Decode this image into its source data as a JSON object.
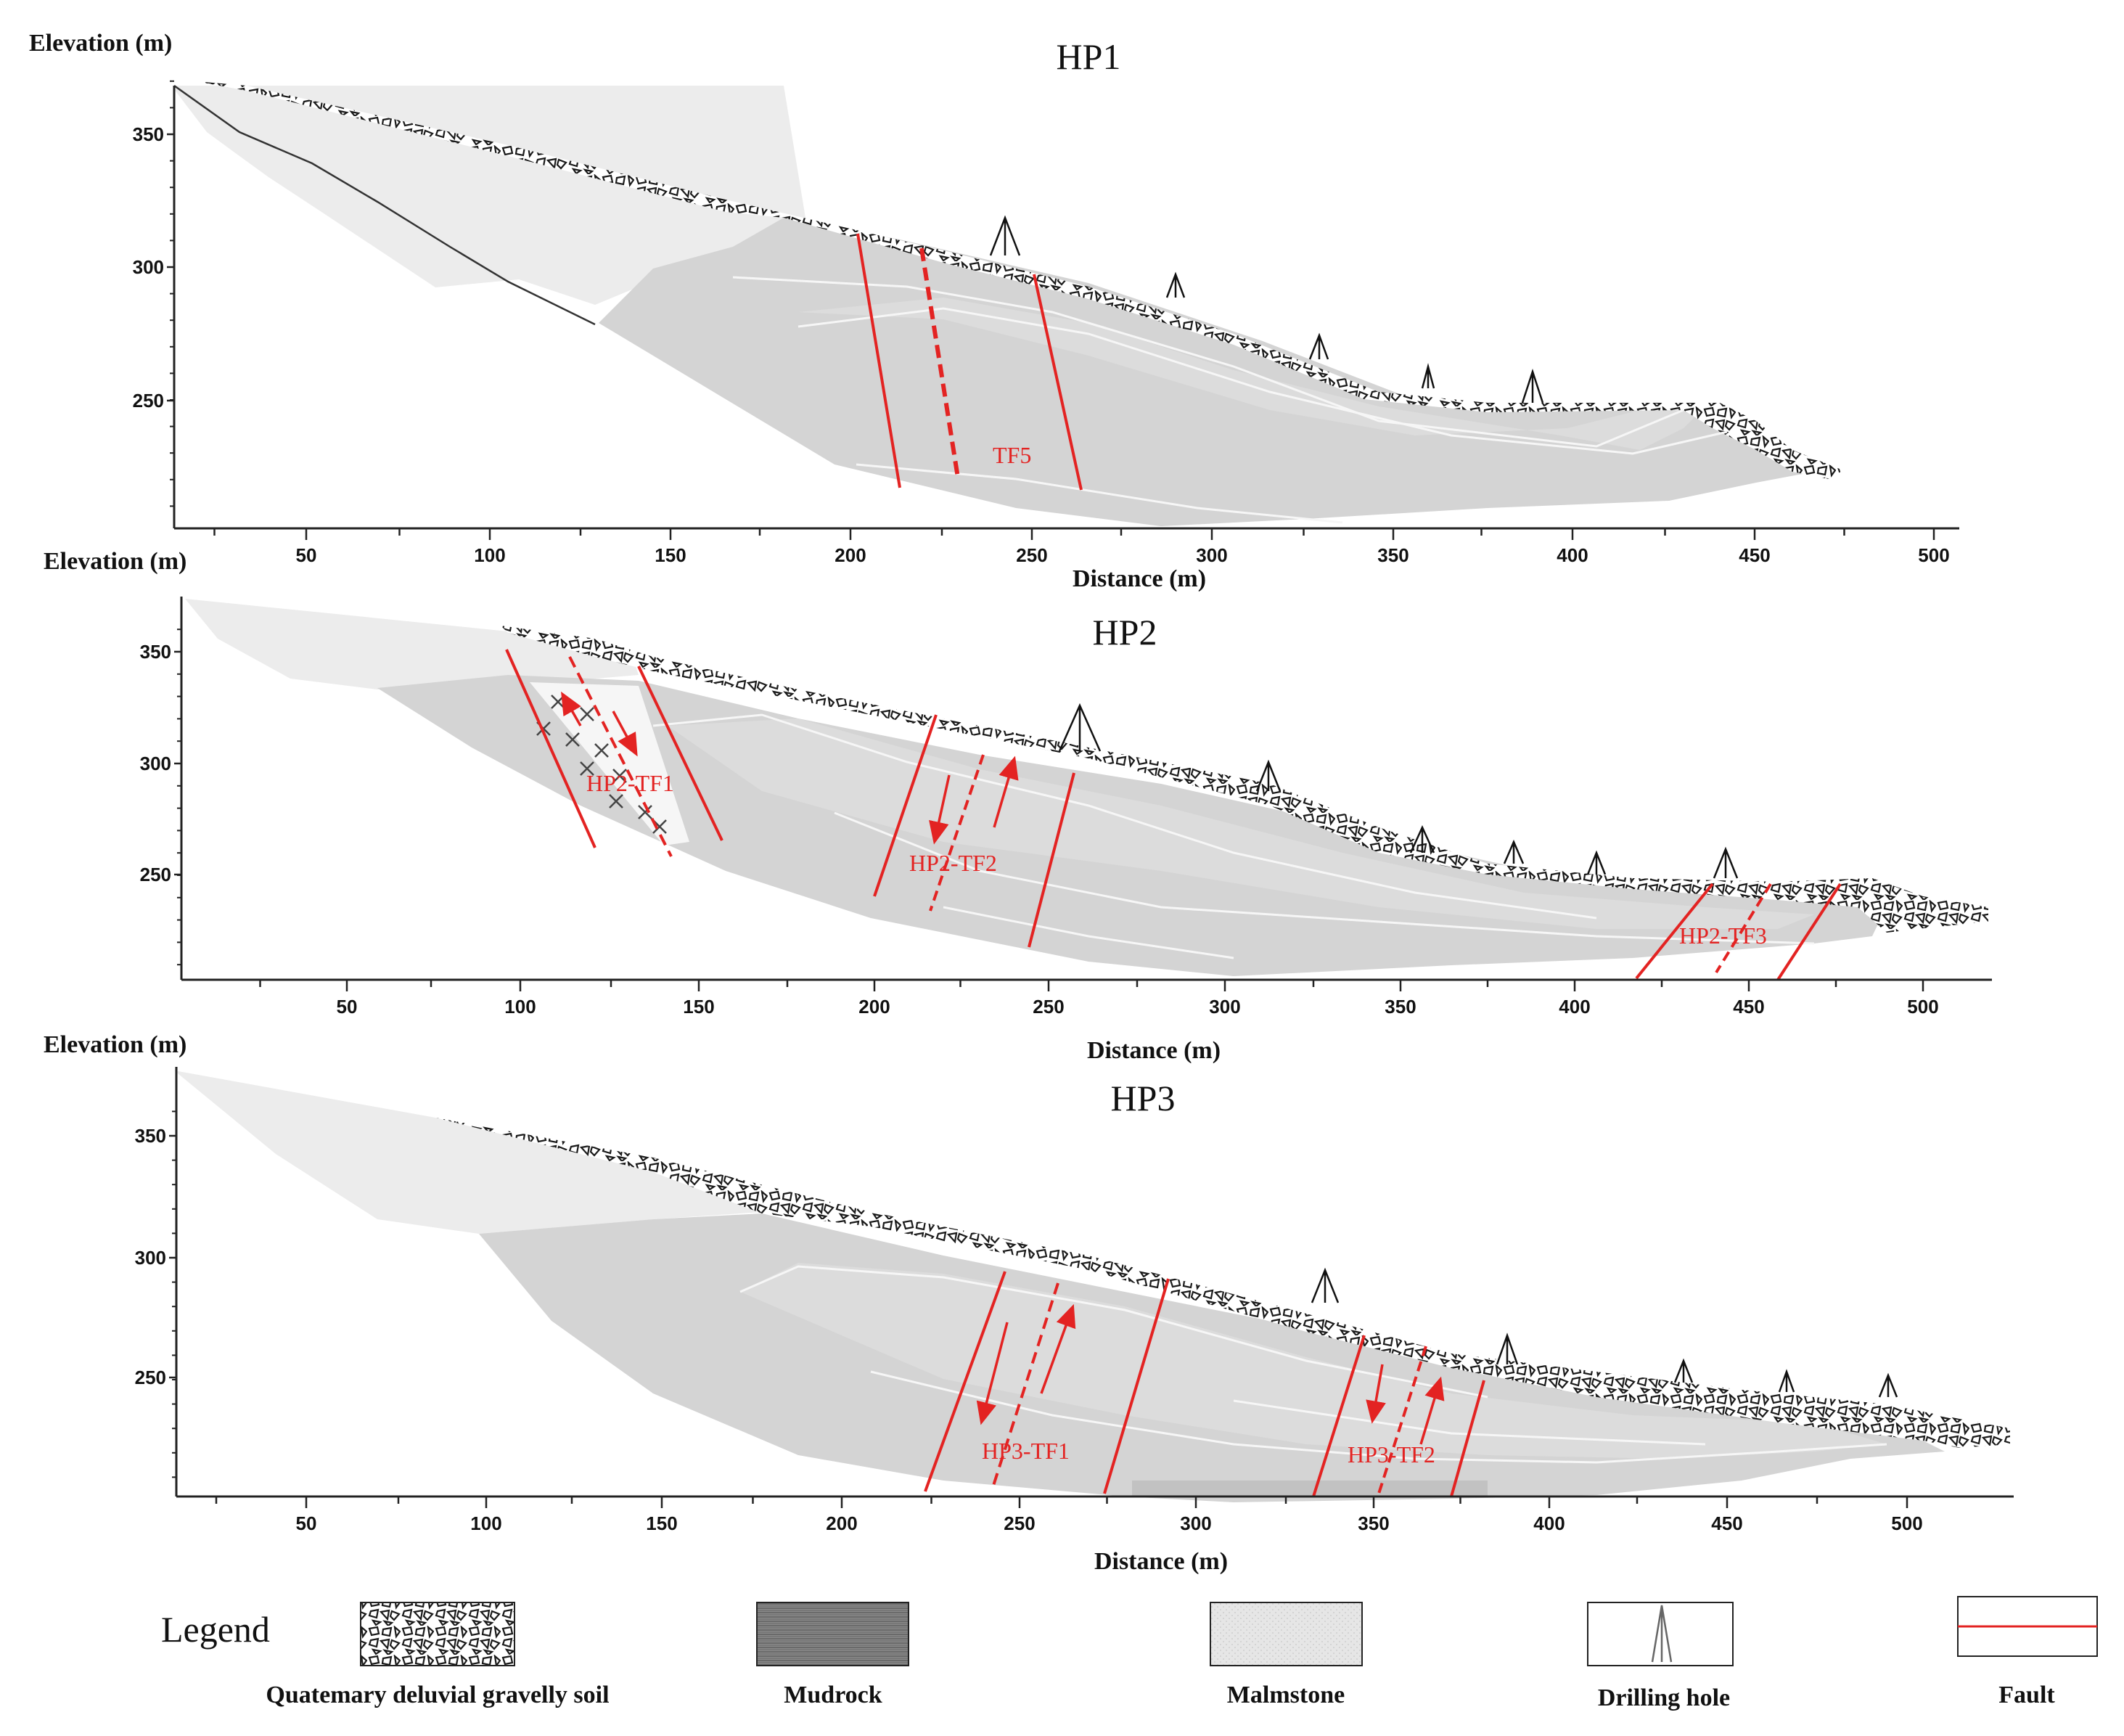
{
  "panels": [
    {
      "title": "HP1",
      "ylabel": "Elevation (m)",
      "xlabel": "Distance (m)",
      "xticks": [
        "50",
        "100",
        "150",
        "200",
        "250",
        "300",
        "350",
        "400",
        "450",
        "500"
      ],
      "yticks": [
        "350",
        "300",
        "250"
      ],
      "fault_labels": [
        "TF5"
      ]
    },
    {
      "title": "HP2",
      "ylabel": "Elevation (m)",
      "xlabel": "Distance (m)",
      "xticks": [
        "50",
        "100",
        "150",
        "200",
        "250",
        "300",
        "350",
        "400",
        "450",
        "500"
      ],
      "yticks": [
        "350",
        "300",
        "250"
      ],
      "fault_labels": [
        "HP2-TF1",
        "HP2-TF2",
        "HP2-TF3"
      ]
    },
    {
      "title": "HP3",
      "ylabel": "Elevation (m)",
      "xlabel": "Distance (m)",
      "xticks": [
        "50",
        "100",
        "150",
        "200",
        "250",
        "300",
        "350",
        "400",
        "450",
        "500"
      ],
      "yticks": [
        "350",
        "300",
        "250"
      ],
      "fault_labels": [
        "HP3-TF1",
        "HP3-TF2"
      ]
    }
  ],
  "legend": {
    "title": "Legend",
    "items": [
      {
        "label": "Quatemary deluvial gravelly soil",
        "icon": "gravel-pattern"
      },
      {
        "label": "Mudrock",
        "icon": "dark-hatch-fill"
      },
      {
        "label": "Malmstone",
        "icon": "light-dot-fill"
      },
      {
        "label": "Drilling hole",
        "icon": "drill-symbol"
      },
      {
        "label": "Fault",
        "icon": "red-line"
      }
    ]
  },
  "colors": {
    "fault": "#e32322",
    "malmstone": "#ececec",
    "mudrock": "#d2d2d2",
    "inner_body": "#dadada",
    "gravel": "#1a1a1a"
  }
}
